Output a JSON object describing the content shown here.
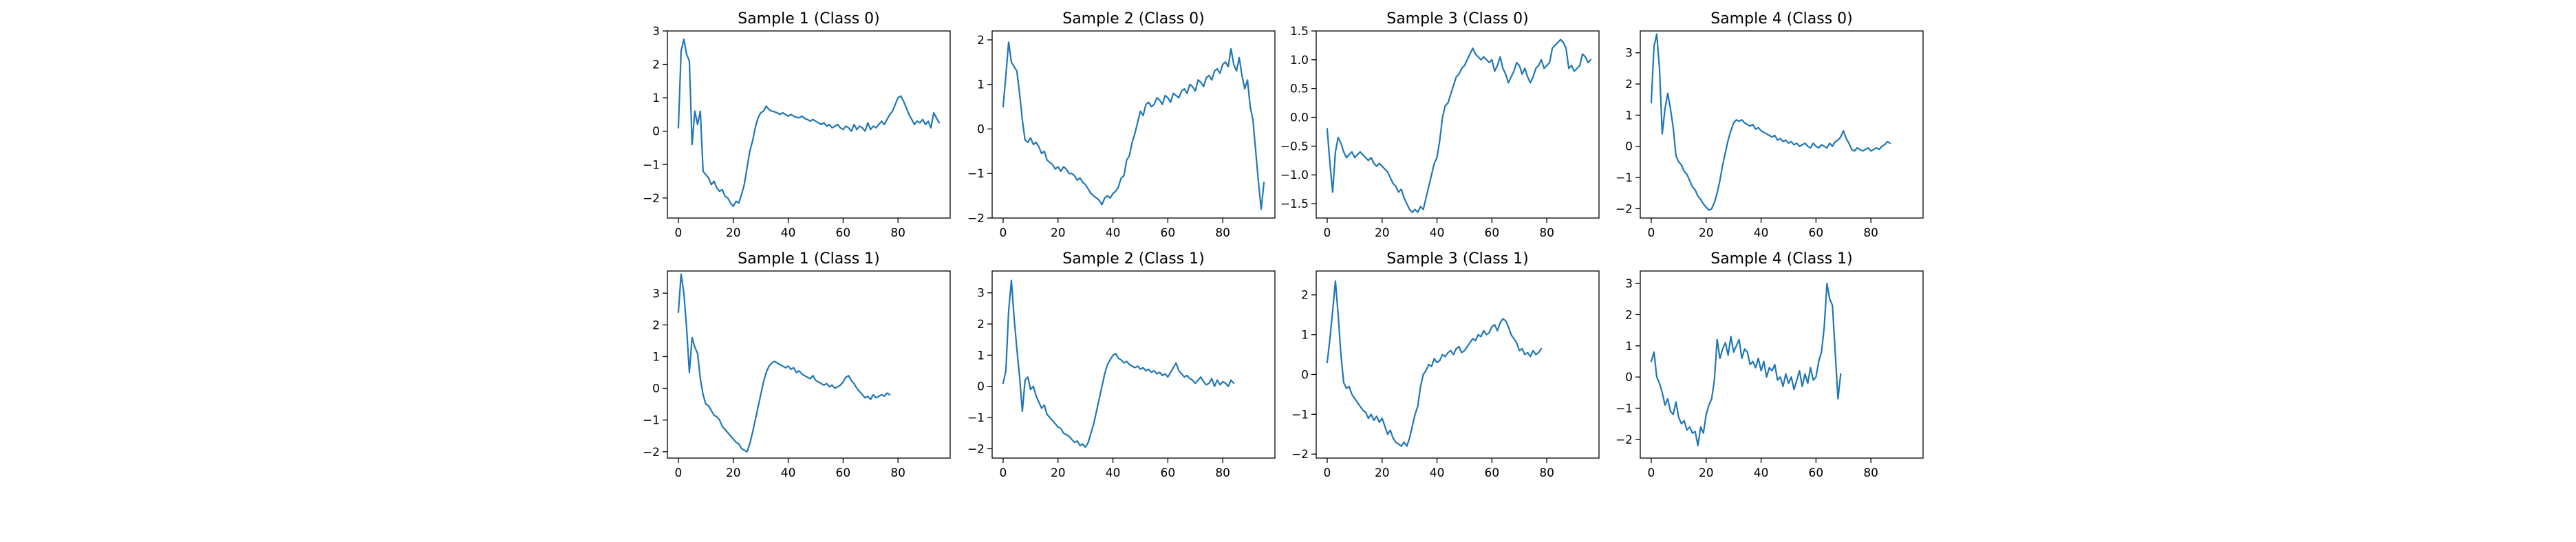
{
  "chart_data": [
    {
      "type": "line",
      "title": "Sample 1 (Class 0)",
      "xlim": [
        -4,
        99
      ],
      "ylim": [
        -2.6,
        3.0
      ],
      "xticks": [
        0,
        20,
        40,
        60,
        80
      ],
      "yticks": [
        -2,
        -1,
        0,
        1,
        2,
        3
      ],
      "color": "#1f77b4",
      "values": [
        0.1,
        2.4,
        2.75,
        2.3,
        2.1,
        -0.4,
        0.6,
        0.2,
        0.6,
        -1.2,
        -1.3,
        -1.4,
        -1.6,
        -1.5,
        -1.7,
        -1.8,
        -1.75,
        -1.95,
        -2.0,
        -2.15,
        -2.25,
        -2.1,
        -2.15,
        -1.9,
        -1.6,
        -1.1,
        -0.6,
        -0.3,
        0.1,
        0.4,
        0.55,
        0.6,
        0.75,
        0.65,
        0.6,
        0.58,
        0.55,
        0.5,
        0.55,
        0.5,
        0.45,
        0.5,
        0.45,
        0.42,
        0.4,
        0.45,
        0.38,
        0.35,
        0.3,
        0.35,
        0.3,
        0.25,
        0.2,
        0.25,
        0.15,
        0.2,
        0.1,
        0.15,
        0.2,
        0.1,
        0.05,
        0.15,
        0.1,
        0.0,
        0.2,
        0.05,
        0.15,
        0.1,
        0.0,
        0.25,
        0.05,
        0.15,
        0.1,
        0.2,
        0.3,
        0.2,
        0.35,
        0.5,
        0.6,
        0.8,
        1.0,
        1.05,
        0.9,
        0.7,
        0.5,
        0.35,
        0.2,
        0.3,
        0.25,
        0.35,
        0.2,
        0.3,
        0.1,
        0.55,
        0.4,
        0.25
      ]
    },
    {
      "type": "line",
      "title": "Sample 2 (Class 0)",
      "xlim": [
        -4,
        99
      ],
      "ylim": [
        -2.0,
        2.2
      ],
      "xticks": [
        0,
        20,
        40,
        60,
        80
      ],
      "yticks": [
        -2,
        -1,
        0,
        1,
        2
      ],
      "color": "#1f77b4",
      "values": [
        0.5,
        1.2,
        1.95,
        1.5,
        1.4,
        1.3,
        0.8,
        0.2,
        -0.25,
        -0.3,
        -0.2,
        -0.35,
        -0.3,
        -0.4,
        -0.55,
        -0.5,
        -0.7,
        -0.75,
        -0.8,
        -0.9,
        -0.85,
        -0.95,
        -0.85,
        -0.9,
        -1.0,
        -1.0,
        -1.05,
        -1.15,
        -1.1,
        -1.2,
        -1.25,
        -1.35,
        -1.45,
        -1.5,
        -1.55,
        -1.6,
        -1.7,
        -1.55,
        -1.5,
        -1.55,
        -1.45,
        -1.4,
        -1.3,
        -1.1,
        -1.05,
        -0.7,
        -0.6,
        -0.3,
        -0.1,
        0.15,
        0.4,
        0.3,
        0.55,
        0.6,
        0.5,
        0.55,
        0.7,
        0.65,
        0.55,
        0.75,
        0.7,
        0.6,
        0.8,
        0.75,
        0.7,
        0.85,
        0.9,
        0.8,
        1.0,
        0.95,
        0.85,
        1.1,
        1.05,
        0.95,
        1.15,
        1.2,
        1.1,
        1.3,
        1.35,
        1.25,
        1.45,
        1.5,
        1.4,
        1.8,
        1.45,
        1.3,
        1.6,
        1.2,
        0.9,
        1.1,
        0.5,
        0.2,
        -0.5,
        -1.2,
        -1.8,
        -1.2
      ]
    },
    {
      "type": "line",
      "title": "Sample 3 (Class 0)",
      "xlim": [
        -4,
        99
      ],
      "ylim": [
        -1.75,
        1.5
      ],
      "xticks": [
        0,
        20,
        40,
        60,
        80
      ],
      "yticks": [
        -1.5,
        -1.0,
        -0.5,
        0.0,
        0.5,
        1.0,
        1.5
      ],
      "ytick_labels": [
        "−1.5",
        "−1.0",
        "−0.5",
        "0.0",
        "0.5",
        "1.0",
        "1.5"
      ],
      "color": "#1f77b4",
      "values": [
        -0.2,
        -0.8,
        -1.3,
        -0.6,
        -0.35,
        -0.45,
        -0.6,
        -0.7,
        -0.65,
        -0.6,
        -0.7,
        -0.65,
        -0.6,
        -0.65,
        -0.7,
        -0.75,
        -0.7,
        -0.8,
        -0.85,
        -0.8,
        -0.85,
        -0.9,
        -0.95,
        -1.05,
        -1.15,
        -1.2,
        -1.3,
        -1.25,
        -1.4,
        -1.5,
        -1.6,
        -1.65,
        -1.6,
        -1.65,
        -1.55,
        -1.6,
        -1.4,
        -1.2,
        -1.0,
        -0.8,
        -0.7,
        -0.4,
        0.0,
        0.2,
        0.25,
        0.4,
        0.55,
        0.7,
        0.75,
        0.85,
        0.9,
        1.0,
        1.1,
        1.2,
        1.1,
        1.05,
        1.0,
        1.05,
        1.0,
        0.95,
        1.0,
        0.8,
        0.9,
        1.05,
        0.85,
        0.75,
        0.6,
        0.7,
        0.8,
        0.95,
        0.9,
        0.75,
        0.85,
        0.7,
        0.6,
        0.7,
        0.85,
        0.9,
        1.0,
        0.85,
        0.9,
        0.95,
        1.2,
        1.25,
        1.3,
        1.35,
        1.3,
        1.2,
        0.85,
        0.9,
        0.8,
        0.85,
        0.9,
        1.1,
        1.05,
        0.95,
        1.0
      ]
    },
    {
      "type": "line",
      "title": "Sample 4 (Class 0)",
      "xlim": [
        -4,
        99
      ],
      "ylim": [
        -2.3,
        3.7
      ],
      "xticks": [
        0,
        20,
        40,
        60,
        80
      ],
      "yticks": [
        -2,
        -1,
        0,
        1,
        2,
        3
      ],
      "color": "#1f77b4",
      "values": [
        1.4,
        3.2,
        3.6,
        2.5,
        0.4,
        1.2,
        1.7,
        1.2,
        0.6,
        -0.3,
        -0.5,
        -0.6,
        -0.8,
        -0.9,
        -1.1,
        -1.3,
        -1.4,
        -1.6,
        -1.7,
        -1.85,
        -1.95,
        -2.05,
        -2.0,
        -1.8,
        -1.5,
        -1.1,
        -0.6,
        -0.2,
        0.2,
        0.5,
        0.75,
        0.85,
        0.8,
        0.85,
        0.75,
        0.7,
        0.65,
        0.7,
        0.55,
        0.6,
        0.5,
        0.45,
        0.4,
        0.35,
        0.3,
        0.35,
        0.2,
        0.25,
        0.15,
        0.2,
        0.1,
        0.15,
        0.05,
        0.1,
        0.0,
        0.05,
        0.1,
        0.0,
        -0.05,
        0.1,
        0.0,
        -0.05,
        0.05,
        0.0,
        -0.05,
        0.1,
        0.0,
        0.15,
        0.2,
        0.3,
        0.5,
        0.25,
        0.1,
        -0.1,
        -0.15,
        -0.05,
        -0.1,
        -0.15,
        -0.1,
        -0.05,
        -0.15,
        -0.1,
        -0.05,
        -0.1,
        0.0,
        0.05,
        0.15,
        0.1
      ]
    },
    {
      "type": "line",
      "title": "Sample 1 (Class 1)",
      "xlim": [
        -4,
        99
      ],
      "ylim": [
        -2.2,
        3.7
      ],
      "xticks": [
        0,
        20,
        40,
        60,
        80
      ],
      "yticks": [
        -2,
        -1,
        0,
        1,
        2,
        3
      ],
      "color": "#1f77b4",
      "values": [
        2.4,
        3.6,
        3.0,
        1.9,
        0.5,
        1.6,
        1.3,
        1.1,
        0.3,
        -0.2,
        -0.5,
        -0.55,
        -0.7,
        -0.85,
        -0.9,
        -1.0,
        -1.2,
        -1.3,
        -1.4,
        -1.5,
        -1.6,
        -1.7,
        -1.75,
        -1.9,
        -1.95,
        -2.0,
        -1.75,
        -1.4,
        -1.0,
        -0.6,
        -0.2,
        0.2,
        0.5,
        0.7,
        0.8,
        0.85,
        0.8,
        0.75,
        0.7,
        0.65,
        0.7,
        0.6,
        0.65,
        0.5,
        0.55,
        0.45,
        0.4,
        0.35,
        0.3,
        0.4,
        0.25,
        0.2,
        0.15,
        0.1,
        0.15,
        0.05,
        0.1,
        0.0,
        0.05,
        0.1,
        0.2,
        0.35,
        0.4,
        0.25,
        0.15,
        0.0,
        -0.1,
        -0.2,
        -0.3,
        -0.25,
        -0.35,
        -0.2,
        -0.3,
        -0.25,
        -0.2,
        -0.25,
        -0.15,
        -0.2
      ]
    },
    {
      "type": "line",
      "title": "Sample 2 (Class 1)",
      "xlim": [
        -4,
        99
      ],
      "ylim": [
        -2.3,
        3.7
      ],
      "xticks": [
        0,
        20,
        40,
        60,
        80
      ],
      "yticks": [
        -2,
        -1,
        0,
        1,
        2,
        3
      ],
      "color": "#1f77b4",
      "values": [
        0.1,
        0.5,
        2.4,
        3.4,
        2.2,
        1.2,
        0.3,
        -0.8,
        0.2,
        0.3,
        -0.1,
        0.0,
        -0.3,
        -0.5,
        -0.7,
        -0.6,
        -0.9,
        -1.0,
        -1.1,
        -1.2,
        -1.3,
        -1.35,
        -1.5,
        -1.55,
        -1.6,
        -1.7,
        -1.8,
        -1.75,
        -1.9,
        -1.85,
        -1.95,
        -1.8,
        -1.5,
        -1.2,
        -0.8,
        -0.4,
        0.0,
        0.4,
        0.7,
        0.85,
        1.0,
        1.05,
        0.9,
        0.85,
        0.75,
        0.8,
        0.7,
        0.65,
        0.6,
        0.65,
        0.55,
        0.6,
        0.5,
        0.55,
        0.45,
        0.5,
        0.4,
        0.45,
        0.35,
        0.4,
        0.3,
        0.45,
        0.6,
        0.75,
        0.5,
        0.4,
        0.3,
        0.35,
        0.25,
        0.2,
        0.1,
        0.2,
        0.3,
        0.15,
        0.05,
        0.1,
        0.25,
        0.0,
        0.2,
        0.05,
        0.15,
        0.1,
        0.0,
        0.2,
        0.1
      ]
    },
    {
      "type": "line",
      "title": "Sample 3 (Class 1)",
      "xlim": [
        -4,
        99
      ],
      "ylim": [
        -2.1,
        2.6
      ],
      "xticks": [
        0,
        20,
        40,
        60,
        80
      ],
      "yticks": [
        -2,
        -1,
        0,
        1,
        2
      ],
      "color": "#1f77b4",
      "values": [
        0.3,
        0.9,
        1.6,
        2.35,
        1.5,
        0.5,
        -0.2,
        -0.35,
        -0.3,
        -0.5,
        -0.6,
        -0.7,
        -0.8,
        -0.9,
        -0.95,
        -1.1,
        -1.0,
        -1.15,
        -1.05,
        -1.2,
        -1.1,
        -1.3,
        -1.5,
        -1.4,
        -1.6,
        -1.7,
        -1.75,
        -1.8,
        -1.7,
        -1.8,
        -1.6,
        -1.3,
        -1.0,
        -0.8,
        -0.3,
        0.0,
        0.1,
        0.25,
        0.2,
        0.4,
        0.3,
        0.35,
        0.5,
        0.45,
        0.55,
        0.6,
        0.5,
        0.65,
        0.7,
        0.55,
        0.6,
        0.7,
        0.8,
        0.9,
        0.85,
        1.0,
        0.95,
        1.1,
        1.0,
        1.05,
        1.2,
        1.25,
        1.1,
        1.3,
        1.4,
        1.35,
        1.2,
        1.0,
        0.9,
        0.8,
        0.6,
        0.65,
        0.5,
        0.55,
        0.45,
        0.6,
        0.5,
        0.55,
        0.65
      ]
    },
    {
      "type": "line",
      "title": "Sample 4 (Class 1)",
      "xlim": [
        -4,
        99
      ],
      "ylim": [
        -2.6,
        3.4
      ],
      "xticks": [
        0,
        20,
        40,
        60,
        80
      ],
      "yticks": [
        -2,
        -1,
        0,
        1,
        2,
        3
      ],
      "color": "#1f77b4",
      "values": [
        0.5,
        0.8,
        0.0,
        -0.2,
        -0.5,
        -0.9,
        -0.7,
        -1.1,
        -1.2,
        -0.8,
        -1.3,
        -1.5,
        -1.4,
        -1.7,
        -1.6,
        -1.8,
        -1.75,
        -2.2,
        -1.6,
        -1.8,
        -1.2,
        -0.9,
        -0.7,
        -0.1,
        1.2,
        0.6,
        0.9,
        1.1,
        0.7,
        1.3,
        0.8,
        1.0,
        1.2,
        0.6,
        0.9,
        0.8,
        0.4,
        0.5,
        0.3,
        0.6,
        0.2,
        0.5,
        0.0,
        0.3,
        0.2,
        0.4,
        -0.1,
        0.0,
        -0.3,
        0.1,
        -0.2,
        0.0,
        -0.4,
        -0.1,
        0.2,
        -0.3,
        0.1,
        -0.2,
        0.3,
        -0.1,
        0.0,
        0.5,
        0.8,
        1.6,
        3.0,
        2.5,
        2.3,
        0.8,
        -0.7,
        0.1
      ]
    }
  ]
}
